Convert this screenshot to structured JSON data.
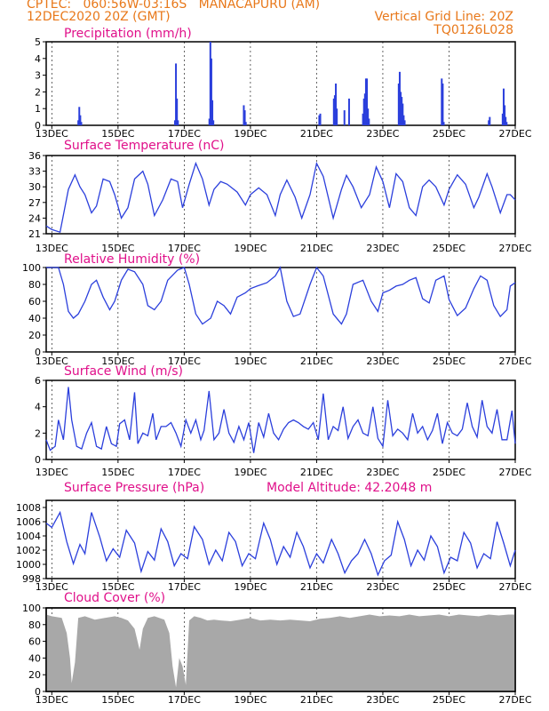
{
  "header": {
    "left_line1": "CPTEC:   060:56W-03:16S   MANACAPURU (AM)",
    "left_line2": "12DEC2020 20Z (GMT)",
    "right_line1": "Vertical Grid Line: 20Z",
    "right_line2": "TQ0126L028"
  },
  "colors": {
    "title": "#e0108a",
    "header": "#e8781a",
    "line": "#2b3fdc",
    "bar": "#2b3fdc",
    "cloud": "#a8a8a8",
    "grid": "#000000"
  },
  "x_tick_labels": [
    "13DEC",
    "15DEC",
    "17DEC",
    "19DEC",
    "21DEC",
    "23DEC",
    "25DEC",
    "27DEC"
  ],
  "chart_data": [
    {
      "type": "bar",
      "title": "Precipitation (mm/h)",
      "xlabel": "",
      "ylabel": "",
      "x_range_days": [
        12.83,
        27.0
      ],
      "ylim": [
        0,
        5
      ],
      "yticks": [
        0,
        1,
        2,
        3,
        4,
        5
      ],
      "grid": "vertical dashed at 20Z",
      "x": [
        13.8,
        13.83,
        13.86,
        13.89,
        16.72,
        16.75,
        16.78,
        16.81,
        17.76,
        17.79,
        17.82,
        17.85,
        17.88,
        18.8,
        18.83,
        18.86,
        21.08,
        21.11,
        21.52,
        21.55,
        21.58,
        21.61,
        21.84,
        21.98,
        22.4,
        22.43,
        22.46,
        22.49,
        22.52,
        22.55,
        22.58,
        23.48,
        23.51,
        23.54,
        23.57,
        23.6,
        23.63,
        23.66,
        24.78,
        24.81,
        24.84,
        26.2,
        26.23,
        26.62,
        26.65,
        26.68,
        26.71,
        26.74
      ],
      "values": [
        0.3,
        1.1,
        0.6,
        0.2,
        0.3,
        3.7,
        1.6,
        0.3,
        0.4,
        5.0,
        4.0,
        1.5,
        0.3,
        1.2,
        0.9,
        0.2,
        0.6,
        0.7,
        1.6,
        1.8,
        2.5,
        1.0,
        0.9,
        1.6,
        0.7,
        1.6,
        1.9,
        2.8,
        2.8,
        1.0,
        0.4,
        2.5,
        3.2,
        2.0,
        1.7,
        1.3,
        0.6,
        0.3,
        2.8,
        2.5,
        0.2,
        0.3,
        0.5,
        0.7,
        2.2,
        1.2,
        0.5,
        0.2
      ]
    },
    {
      "type": "line",
      "title": "Surface Temperature (nC)",
      "xlabel": "",
      "ylabel": "",
      "x_range_days": [
        12.83,
        27.0
      ],
      "ylim": [
        21,
        36
      ],
      "yticks": [
        21,
        24,
        27,
        30,
        33,
        36
      ],
      "x": [
        12.83,
        13.0,
        13.25,
        13.5,
        13.7,
        13.85,
        14.0,
        14.2,
        14.35,
        14.55,
        14.75,
        14.9,
        15.1,
        15.3,
        15.5,
        15.75,
        15.9,
        16.1,
        16.35,
        16.6,
        16.8,
        16.95,
        17.15,
        17.35,
        17.55,
        17.75,
        17.9,
        18.1,
        18.3,
        18.6,
        18.85,
        19.0,
        19.25,
        19.5,
        19.75,
        19.9,
        20.1,
        20.35,
        20.55,
        20.8,
        21.0,
        21.2,
        21.5,
        21.75,
        21.9,
        22.1,
        22.35,
        22.6,
        22.8,
        23.0,
        23.2,
        23.4,
        23.6,
        23.8,
        24.0,
        24.2,
        24.4,
        24.6,
        24.85,
        25.0,
        25.25,
        25.5,
        25.75,
        25.9,
        26.15,
        26.3,
        26.55,
        26.75,
        26.85,
        27.0
      ],
      "values": [
        22.5,
        21.8,
        21.3,
        29.5,
        32.3,
        30.0,
        28.5,
        25.0,
        26.3,
        31.5,
        31.0,
        28.5,
        24.0,
        26.0,
        31.5,
        33.0,
        30.5,
        24.5,
        27.5,
        31.5,
        31.0,
        26.0,
        30.5,
        34.5,
        31.5,
        26.5,
        29.5,
        31.0,
        30.5,
        29.0,
        26.5,
        28.5,
        29.8,
        28.5,
        24.5,
        28.5,
        31.3,
        28.0,
        24.0,
        28.5,
        34.5,
        32.0,
        24.0,
        29.5,
        32.2,
        30.0,
        26.0,
        28.5,
        33.8,
        31.0,
        26.0,
        32.5,
        31.0,
        26.0,
        24.5,
        30.0,
        31.3,
        30.0,
        26.5,
        29.5,
        32.3,
        30.5,
        26.0,
        28.0,
        32.5,
        30.0,
        25.0,
        28.5,
        28.5,
        27.5
      ]
    },
    {
      "type": "line",
      "title": "Relative Humidity (%)",
      "xlabel": "",
      "ylabel": "",
      "x_range_days": [
        12.83,
        27.0
      ],
      "ylim": [
        0,
        100
      ],
      "yticks": [
        0,
        20,
        40,
        60,
        80,
        100
      ],
      "x": [
        12.83,
        13.2,
        13.35,
        13.5,
        13.65,
        13.8,
        14.0,
        14.2,
        14.35,
        14.55,
        14.75,
        14.9,
        15.1,
        15.3,
        15.5,
        15.75,
        15.9,
        16.1,
        16.3,
        16.5,
        16.8,
        17.0,
        17.15,
        17.35,
        17.55,
        17.8,
        18.0,
        18.2,
        18.4,
        18.6,
        18.85,
        19.0,
        19.2,
        19.5,
        19.75,
        19.9,
        20.1,
        20.3,
        20.5,
        20.8,
        21.0,
        21.2,
        21.5,
        21.75,
        21.9,
        22.1,
        22.4,
        22.65,
        22.85,
        23.0,
        23.2,
        23.4,
        23.6,
        23.8,
        24.0,
        24.2,
        24.4,
        24.6,
        24.85,
        25.0,
        25.25,
        25.5,
        25.75,
        25.95,
        26.15,
        26.35,
        26.55,
        26.75,
        26.85,
        27.0
      ],
      "values": [
        100,
        100,
        80,
        48,
        40,
        45,
        60,
        80,
        85,
        65,
        50,
        60,
        85,
        98,
        95,
        80,
        55,
        50,
        60,
        85,
        97,
        100,
        80,
        45,
        33,
        40,
        60,
        55,
        45,
        65,
        70,
        75,
        78,
        82,
        90,
        100,
        60,
        42,
        45,
        80,
        100,
        90,
        45,
        33,
        45,
        80,
        85,
        60,
        48,
        70,
        73,
        78,
        80,
        85,
        88,
        63,
        58,
        85,
        90,
        62,
        43,
        52,
        75,
        90,
        85,
        55,
        42,
        50,
        78,
        82
      ]
    },
    {
      "type": "line",
      "title": "Surface Wind (m/s)",
      "xlabel": "",
      "ylabel": "",
      "x_range_days": [
        12.83,
        27.0
      ],
      "ylim": [
        0,
        6
      ],
      "yticks": [
        0,
        2,
        4,
        6
      ],
      "x": [
        12.83,
        12.95,
        13.1,
        13.2,
        13.35,
        13.5,
        13.6,
        13.75,
        13.9,
        14.05,
        14.2,
        14.35,
        14.5,
        14.65,
        14.8,
        14.95,
        15.05,
        15.2,
        15.35,
        15.5,
        15.6,
        15.75,
        15.9,
        16.05,
        16.15,
        16.3,
        16.45,
        16.6,
        16.75,
        16.9,
        17.05,
        17.2,
        17.35,
        17.5,
        17.6,
        17.75,
        17.9,
        18.05,
        18.2,
        18.35,
        18.5,
        18.65,
        18.8,
        18.95,
        19.1,
        19.25,
        19.4,
        19.55,
        19.7,
        19.85,
        20.0,
        20.15,
        20.3,
        20.45,
        20.6,
        20.75,
        20.9,
        21.05,
        21.2,
        21.35,
        21.5,
        21.65,
        21.8,
        21.95,
        22.1,
        22.25,
        22.4,
        22.55,
        22.7,
        22.85,
        23.0,
        23.15,
        23.3,
        23.45,
        23.6,
        23.75,
        23.9,
        24.05,
        24.2,
        24.35,
        24.5,
        24.65,
        24.8,
        24.95,
        25.1,
        25.25,
        25.4,
        25.55,
        25.7,
        25.85,
        26.0,
        26.15,
        26.3,
        26.45,
        26.6,
        26.75,
        26.9,
        27.0
      ],
      "values": [
        1.5,
        0.7,
        1.0,
        3.0,
        1.5,
        5.5,
        3.0,
        1.0,
        0.8,
        2.0,
        2.8,
        1.0,
        0.8,
        2.5,
        1.2,
        1.0,
        2.7,
        3.0,
        1.5,
        5.1,
        1.2,
        2.0,
        1.8,
        3.5,
        1.5,
        2.5,
        2.5,
        2.8,
        2.0,
        1.0,
        3.0,
        2.0,
        3.0,
        1.5,
        2.2,
        5.2,
        1.5,
        2.0,
        3.8,
        2.0,
        1.3,
        2.5,
        1.5,
        2.8,
        0.5,
        2.8,
        1.7,
        3.5,
        2.0,
        1.5,
        2.3,
        2.8,
        3.0,
        2.8,
        2.5,
        2.3,
        2.8,
        1.5,
        5.0,
        1.5,
        2.5,
        2.2,
        4.0,
        1.6,
        2.5,
        3.0,
        2.0,
        1.8,
        4.0,
        1.6,
        1.0,
        4.5,
        1.8,
        2.3,
        2.0,
        1.5,
        3.5,
        2.0,
        2.5,
        1.5,
        2.2,
        3.5,
        1.2,
        2.8,
        2.0,
        1.8,
        2.3,
        4.3,
        2.5,
        1.7,
        4.5,
        2.5,
        2.0,
        3.8,
        1.5,
        1.5,
        3.7,
        1.2
      ]
    },
    {
      "type": "line",
      "title": "Surface Pressure (hPa)",
      "annotation": "Model Altitude: 42.2048 m",
      "xlabel": "",
      "ylabel": "",
      "x_range_days": [
        12.83,
        27.0
      ],
      "ylim": [
        998,
        1009
      ],
      "yticks": [
        998,
        1000,
        1002,
        1004,
        1006,
        1008
      ],
      "x": [
        12.83,
        13.0,
        13.25,
        13.45,
        13.65,
        13.85,
        14.0,
        14.2,
        14.45,
        14.65,
        14.85,
        15.05,
        15.25,
        15.5,
        15.7,
        15.9,
        16.1,
        16.3,
        16.5,
        16.7,
        16.9,
        17.1,
        17.3,
        17.55,
        17.75,
        17.95,
        18.15,
        18.35,
        18.55,
        18.75,
        18.95,
        19.15,
        19.4,
        19.6,
        19.8,
        20.0,
        20.2,
        20.4,
        20.6,
        20.8,
        21.0,
        21.2,
        21.45,
        21.65,
        21.85,
        22.05,
        22.25,
        22.45,
        22.65,
        22.85,
        23.05,
        23.25,
        23.45,
        23.65,
        23.85,
        24.05,
        24.25,
        24.45,
        24.65,
        24.85,
        25.05,
        25.25,
        25.45,
        25.65,
        25.85,
        26.05,
        26.25,
        26.45,
        26.65,
        26.85,
        27.0
      ],
      "values": [
        1005.8,
        1005.2,
        1007.3,
        1003.2,
        1000.1,
        1002.8,
        1001.5,
        1007.3,
        1003.8,
        1000.5,
        1002.2,
        1001.0,
        1004.8,
        1003.0,
        999.0,
        1001.8,
        1000.6,
        1005.0,
        1003.2,
        999.8,
        1001.5,
        1000.8,
        1005.3,
        1003.5,
        1000.0,
        1002.0,
        1000.5,
        1004.5,
        1003.2,
        999.8,
        1001.5,
        1000.8,
        1005.8,
        1003.5,
        1000.0,
        1002.5,
        1001.0,
        1004.5,
        1002.5,
        999.5,
        1001.5,
        1000.2,
        1003.5,
        1001.5,
        998.8,
        1000.5,
        1001.5,
        1003.5,
        1001.5,
        998.5,
        1000.5,
        1001.3,
        1006.0,
        1003.5,
        999.8,
        1002.0,
        1000.6,
        1004.0,
        1002.5,
        998.8,
        1001.0,
        1000.5,
        1004.5,
        1003.0,
        999.5,
        1001.5,
        1000.8,
        1006.0,
        1003.0,
        999.8,
        1002.0
      ]
    },
    {
      "type": "area",
      "title": "Cloud Cover (%)",
      "xlabel": "",
      "ylabel": "",
      "x_range_days": [
        12.83,
        27.0
      ],
      "ylim": [
        0,
        100
      ],
      "yticks": [
        0,
        20,
        40,
        60,
        80,
        100
      ],
      "x": [
        12.83,
        13.0,
        13.3,
        13.45,
        13.55,
        13.6,
        13.7,
        13.8,
        14.0,
        14.3,
        14.6,
        14.9,
        15.1,
        15.3,
        15.5,
        15.65,
        15.75,
        15.9,
        16.1,
        16.4,
        16.55,
        16.65,
        16.75,
        16.85,
        16.95,
        17.05,
        17.15,
        17.3,
        17.5,
        17.7,
        17.9,
        18.1,
        18.4,
        18.7,
        19.0,
        19.3,
        19.6,
        19.9,
        20.2,
        20.5,
        20.8,
        21.1,
        21.4,
        21.7,
        22.0,
        22.3,
        22.6,
        22.9,
        23.2,
        23.5,
        23.8,
        24.1,
        24.4,
        24.7,
        25.0,
        25.3,
        25.6,
        25.9,
        26.2,
        26.5,
        26.8,
        27.0
      ],
      "values": [
        92,
        90,
        88,
        70,
        40,
        10,
        35,
        88,
        90,
        86,
        88,
        90,
        88,
        85,
        75,
        50,
        75,
        88,
        90,
        86,
        70,
        30,
        5,
        40,
        30,
        8,
        85,
        90,
        88,
        85,
        86,
        85,
        84,
        86,
        88,
        85,
        86,
        85,
        86,
        85,
        84,
        87,
        88,
        90,
        88,
        90,
        92,
        90,
        91,
        90,
        92,
        90,
        91,
        92,
        90,
        92,
        91,
        90,
        92,
        91,
        92,
        92
      ]
    }
  ]
}
